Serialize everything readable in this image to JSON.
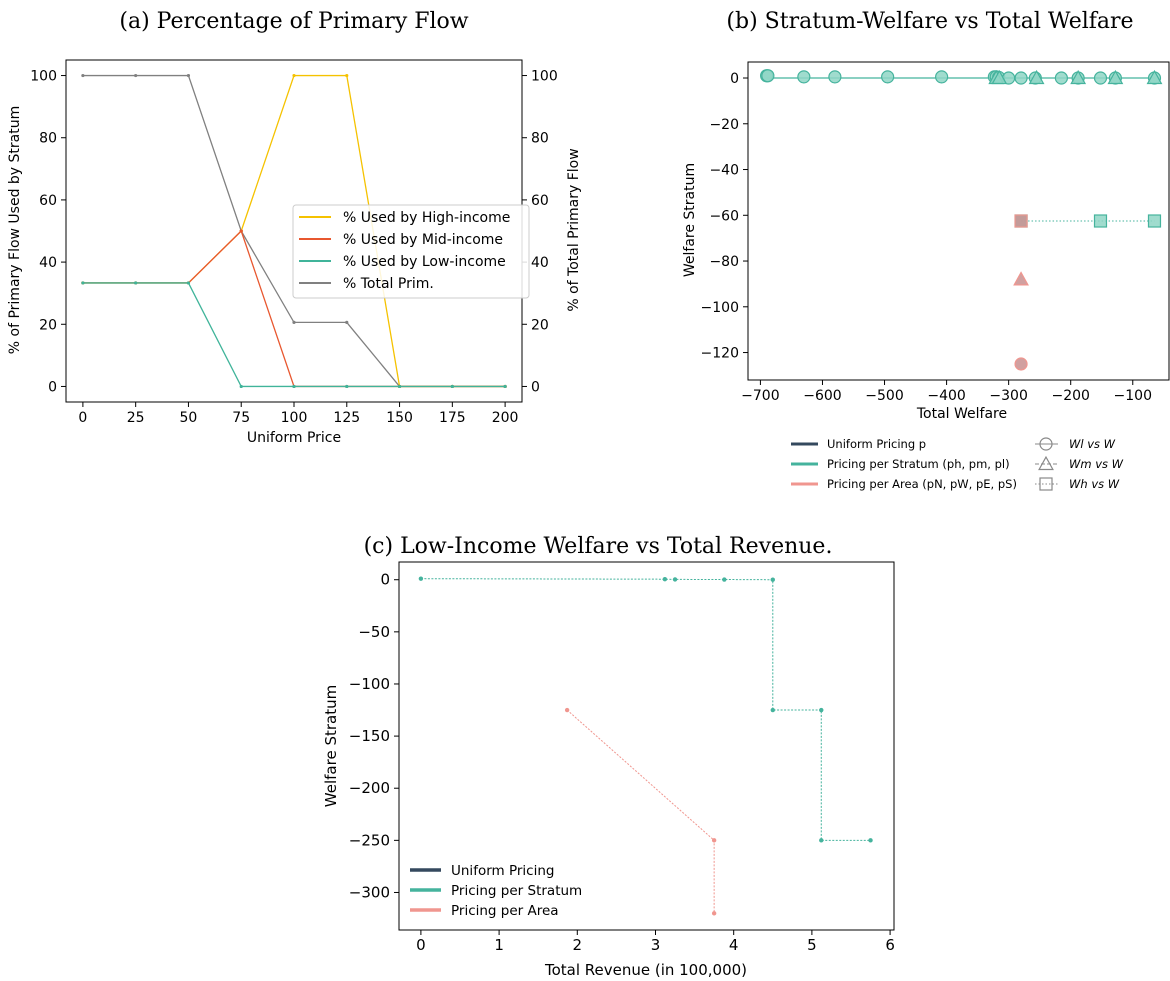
{
  "colors": {
    "high": "#f5c200",
    "mid": "#e8572f",
    "low": "#40b49a",
    "total": "#808080",
    "uniform": "#34495e",
    "stratum": "#45b39d",
    "area": "#f0968f"
  },
  "chart_data": [
    {
      "id": "a",
      "type": "line",
      "title_prefix": "(a)",
      "title": "Percentage of Primary Flow",
      "xlabel": "Uniform Price",
      "ylabel": "% of Primary Flow Used by Stratum",
      "ylabel_right": "% of Total Primary Flow",
      "xlim": [
        -8,
        208
      ],
      "ylim": [
        -5,
        105
      ],
      "xticks": [
        0,
        25,
        50,
        75,
        100,
        125,
        150,
        175,
        200
      ],
      "yticks": [
        0,
        20,
        40,
        60,
        80,
        100
      ],
      "yticks_right": [
        0,
        20,
        40,
        60,
        80,
        100
      ],
      "x": [
        0,
        25,
        50,
        75,
        100,
        125,
        150,
        175,
        200
      ],
      "series": [
        {
          "name": "% Used by High-income",
          "color_key": "high",
          "values": [
            33.3,
            33.3,
            33.3,
            50,
            100,
            100,
            0,
            0,
            0
          ]
        },
        {
          "name": "% Used by Mid-income",
          "color_key": "mid",
          "values": [
            33.3,
            33.3,
            33.3,
            50,
            0,
            0,
            0,
            0,
            0
          ]
        },
        {
          "name": "% Used by Low-income",
          "color_key": "low",
          "values": [
            33.3,
            33.3,
            33.3,
            0,
            0,
            0,
            0,
            0,
            0
          ]
        },
        {
          "name": "% Total Prim.",
          "color_key": "total",
          "values": [
            100,
            100,
            100,
            50,
            20.6,
            20.6,
            0,
            0,
            0
          ]
        }
      ],
      "legend_placement": "center-right"
    },
    {
      "id": "b",
      "type": "scatter",
      "title_prefix": "(b)",
      "title": "Stratum-Welfare vs Total Welfare",
      "xlabel": "Total Welfare",
      "ylabel": "Welfare Stratum",
      "xlim": [
        -720,
        -40
      ],
      "ylim": [
        -132,
        7
      ],
      "xticks": [
        -700,
        -600,
        -500,
        -400,
        -300,
        -200,
        -100
      ],
      "yticks": [
        0,
        -20,
        -40,
        -60,
        -80,
        -100,
        -120
      ],
      "series": [
        {
          "name": "Wl",
          "group": "stratum",
          "marker": "circle",
          "x": [
            -690,
            -688,
            -630,
            -580,
            -495,
            -408,
            -323,
            -320,
            -316,
            -300,
            -280,
            -257,
            -215,
            -188,
            -152,
            -128,
            -65
          ],
          "y": [
            1,
            1,
            0.5,
            0.5,
            0.5,
            0.5,
            0.5,
            0.5,
            0.3,
            0,
            0,
            0,
            0,
            0,
            0,
            0,
            0
          ]
        },
        {
          "name": "Wm",
          "group": "stratum",
          "marker": "triangle",
          "x": [
            -320,
            -315,
            -255,
            -188,
            -128,
            -65
          ],
          "y": [
            0,
            0,
            0,
            0,
            0,
            0
          ]
        },
        {
          "name": "Wh",
          "group": "stratum",
          "marker": "square",
          "x": [
            -280,
            -152,
            -65
          ],
          "y": [
            -62.5,
            -62.5,
            -62.5
          ]
        },
        {
          "name": "Wl",
          "group": "area",
          "marker": "circle",
          "x": [
            -280
          ],
          "y": [
            -125
          ]
        },
        {
          "name": "Wm",
          "group": "area",
          "marker": "triangle",
          "x": [
            -280
          ],
          "y": [
            -88
          ]
        },
        {
          "name": "Wh",
          "group": "area",
          "marker": "square",
          "x": [
            -280
          ],
          "y": [
            -62.5
          ]
        }
      ],
      "legend_left": [
        {
          "label": "Uniform Pricing p",
          "color_key": "uniform"
        },
        {
          "label": "Pricing per Stratum (ph, pm, pl)",
          "color_key": "stratum"
        },
        {
          "label": "Pricing per Area (pN, pW, pE, pS)",
          "color_key": "area"
        }
      ],
      "legend_right": [
        {
          "label": "Wl vs W",
          "marker": "circle"
        },
        {
          "label": "Wm vs W",
          "marker": "triangle"
        },
        {
          "label": "Wh vs W",
          "marker": "square"
        }
      ]
    },
    {
      "id": "c",
      "type": "line",
      "title_prefix": "(c)",
      "title": "Low-Income Welfare vs Total Revenue.",
      "xlabel": "Total Revenue (in 100,000)",
      "ylabel": "Welfare Stratum",
      "xlim": [
        -0.28,
        6.05
      ],
      "ylim": [
        -336,
        17
      ],
      "xticks": [
        0,
        1,
        2,
        3,
        4,
        5,
        6
      ],
      "yticks": [
        0,
        -50,
        -100,
        -150,
        -200,
        -250,
        -300
      ],
      "series": [
        {
          "name": "Pricing per Stratum",
          "color_key": "stratum",
          "step": true,
          "x": [
            0,
            3.12,
            3.25,
            3.88,
            4.5,
            4.5,
            5.12,
            5.12,
            5.75
          ],
          "y": [
            1,
            0.5,
            0.3,
            0.2,
            0,
            -125,
            -125,
            -250,
            -250
          ]
        },
        {
          "name": "Pricing per Area",
          "color_key": "area",
          "step": false,
          "x": [
            1.87,
            3.75,
            3.75
          ],
          "y": [
            -125,
            -250,
            -320
          ]
        }
      ],
      "legend": [
        {
          "label": "Uniform Pricing",
          "color_key": "uniform"
        },
        {
          "label": "Pricing per Stratum",
          "color_key": "stratum"
        },
        {
          "label": "Pricing per Area",
          "color_key": "area"
        }
      ],
      "legend_placement": "lower-left"
    }
  ]
}
